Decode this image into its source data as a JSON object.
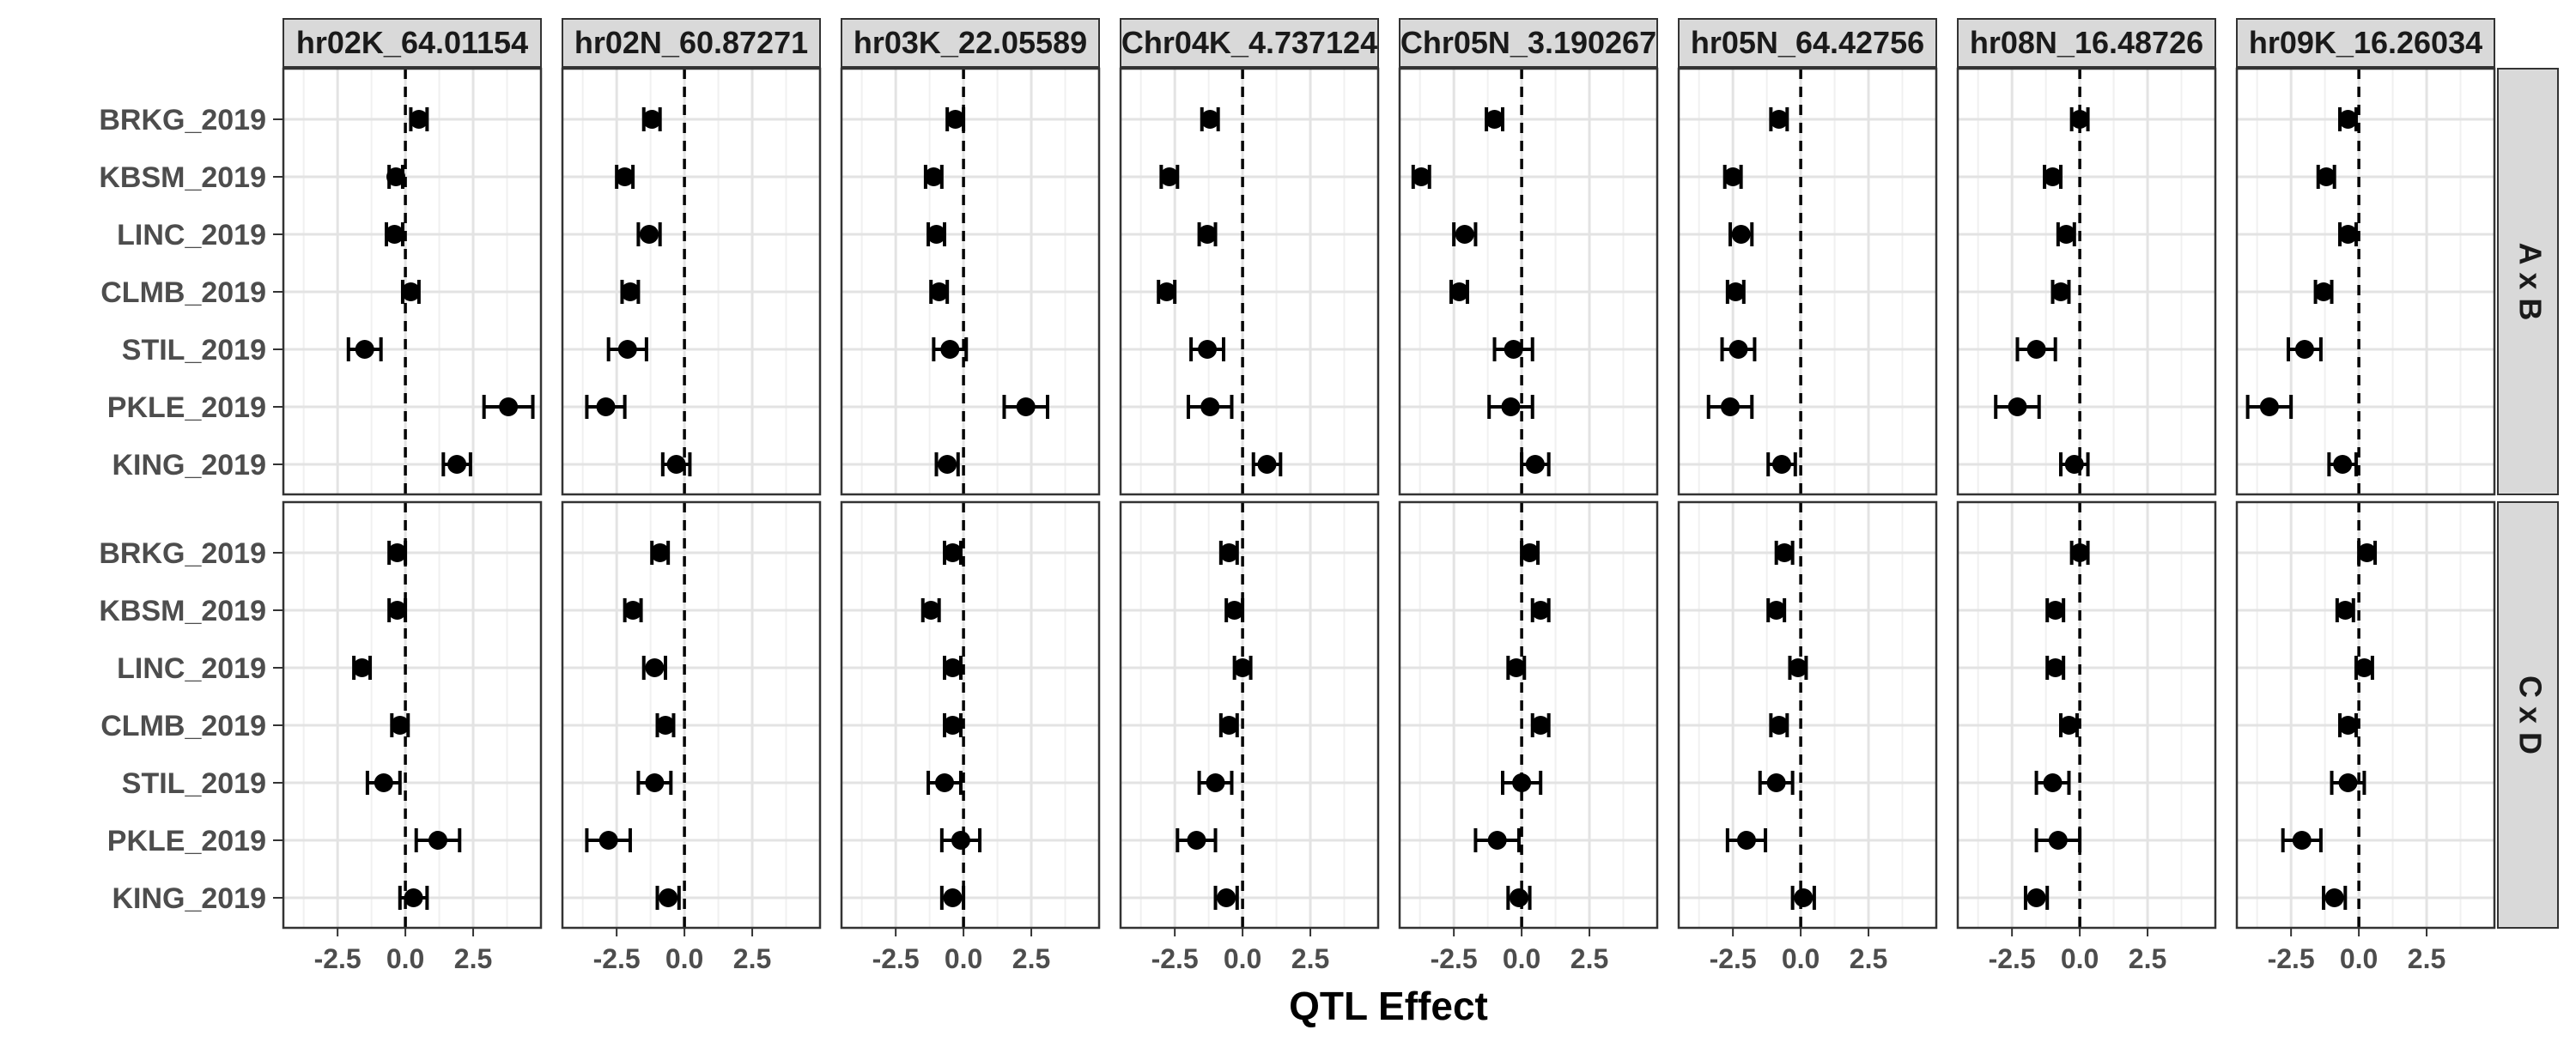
{
  "chart_data": {
    "type": "forest",
    "xlabel": "QTL Effect",
    "ylabel": "",
    "xlim": [
      -4.5,
      5.0
    ],
    "x_ticks": [
      -2.5,
      0.0,
      2.5
    ],
    "x_tick_labels": [
      "-2.5",
      "0.0",
      "2.5"
    ],
    "reference_line": 0,
    "grid": true,
    "environments": [
      "BRKG_2019",
      "KBSM_2019",
      "LINC_2019",
      "CLMB_2019",
      "STIL_2019",
      "PKLE_2019",
      "KING_2019"
    ],
    "columns": [
      "hr02K_64.01154",
      "hr02N_60.87271",
      "hr03K_22.05589",
      "Chr04K_4.737124",
      "Chr05N_3.190267",
      "hr05N_64.42756",
      "hr08N_16.48726",
      "hr09K_16.26034"
    ],
    "rows": [
      "A x B",
      "C x D"
    ],
    "panels": [
      {
        "row": "A x B",
        "column": "hr02K_64.01154",
        "points": [
          {
            "env": "BRKG_2019",
            "estimate": 0.5,
            "lower": 0.2,
            "upper": 0.8
          },
          {
            "env": "KBSM_2019",
            "estimate": -0.35,
            "lower": -0.6,
            "upper": -0.1
          },
          {
            "env": "LINC_2019",
            "estimate": -0.4,
            "lower": -0.7,
            "upper": -0.1
          },
          {
            "env": "CLMB_2019",
            "estimate": 0.2,
            "lower": -0.1,
            "upper": 0.5
          },
          {
            "env": "STIL_2019",
            "estimate": -1.5,
            "lower": -2.1,
            "upper": -0.9
          },
          {
            "env": "PKLE_2019",
            "estimate": 3.8,
            "lower": 2.9,
            "upper": 4.7
          },
          {
            "env": "KING_2019",
            "estimate": 1.9,
            "lower": 1.4,
            "upper": 2.4
          }
        ]
      },
      {
        "row": "A x B",
        "column": "hr02N_60.87271",
        "points": [
          {
            "env": "BRKG_2019",
            "estimate": -1.2,
            "lower": -1.5,
            "upper": -0.9
          },
          {
            "env": "KBSM_2019",
            "estimate": -2.2,
            "lower": -2.5,
            "upper": -1.9
          },
          {
            "env": "LINC_2019",
            "estimate": -1.3,
            "lower": -1.7,
            "upper": -0.9
          },
          {
            "env": "CLMB_2019",
            "estimate": -2.0,
            "lower": -2.3,
            "upper": -1.7
          },
          {
            "env": "STIL_2019",
            "estimate": -2.1,
            "lower": -2.8,
            "upper": -1.4
          },
          {
            "env": "PKLE_2019",
            "estimate": -2.9,
            "lower": -3.6,
            "upper": -2.2
          },
          {
            "env": "KING_2019",
            "estimate": -0.3,
            "lower": -0.8,
            "upper": 0.2
          }
        ]
      },
      {
        "row": "A x B",
        "column": "hr03K_22.05589",
        "points": [
          {
            "env": "BRKG_2019",
            "estimate": -0.3,
            "lower": -0.6,
            "upper": 0.0
          },
          {
            "env": "KBSM_2019",
            "estimate": -1.1,
            "lower": -1.4,
            "upper": -0.8
          },
          {
            "env": "LINC_2019",
            "estimate": -1.0,
            "lower": -1.3,
            "upper": -0.7
          },
          {
            "env": "CLMB_2019",
            "estimate": -0.9,
            "lower": -1.2,
            "upper": -0.6
          },
          {
            "env": "STIL_2019",
            "estimate": -0.5,
            "lower": -1.1,
            "upper": 0.1
          },
          {
            "env": "PKLE_2019",
            "estimate": 2.3,
            "lower": 1.5,
            "upper": 3.1
          },
          {
            "env": "KING_2019",
            "estimate": -0.6,
            "lower": -1.0,
            "upper": -0.2
          }
        ]
      },
      {
        "row": "A x B",
        "column": "Chr04K_4.737124",
        "points": [
          {
            "env": "BRKG_2019",
            "estimate": -1.2,
            "lower": -1.5,
            "upper": -0.9
          },
          {
            "env": "KBSM_2019",
            "estimate": -2.7,
            "lower": -3.0,
            "upper": -2.4
          },
          {
            "env": "LINC_2019",
            "estimate": -1.3,
            "lower": -1.6,
            "upper": -1.0
          },
          {
            "env": "CLMB_2019",
            "estimate": -2.8,
            "lower": -3.1,
            "upper": -2.5
          },
          {
            "env": "STIL_2019",
            "estimate": -1.3,
            "lower": -1.9,
            "upper": -0.7
          },
          {
            "env": "PKLE_2019",
            "estimate": -1.2,
            "lower": -2.0,
            "upper": -0.4
          },
          {
            "env": "KING_2019",
            "estimate": 0.9,
            "lower": 0.4,
            "upper": 1.4
          }
        ]
      },
      {
        "row": "A x B",
        "column": "Chr05N_3.190267",
        "points": [
          {
            "env": "BRKG_2019",
            "estimate": -1.0,
            "lower": -1.3,
            "upper": -0.7
          },
          {
            "env": "KBSM_2019",
            "estimate": -3.7,
            "lower": -4.0,
            "upper": -3.4
          },
          {
            "env": "LINC_2019",
            "estimate": -2.1,
            "lower": -2.5,
            "upper": -1.7
          },
          {
            "env": "CLMB_2019",
            "estimate": -2.3,
            "lower": -2.6,
            "upper": -2.0
          },
          {
            "env": "STIL_2019",
            "estimate": -0.3,
            "lower": -1.0,
            "upper": 0.4
          },
          {
            "env": "PKLE_2019",
            "estimate": -0.4,
            "lower": -1.2,
            "upper": 0.4
          },
          {
            "env": "KING_2019",
            "estimate": 0.5,
            "lower": 0.0,
            "upper": 1.0
          }
        ]
      },
      {
        "row": "A x B",
        "column": "hr05N_64.42756",
        "points": [
          {
            "env": "BRKG_2019",
            "estimate": -0.8,
            "lower": -1.1,
            "upper": -0.5
          },
          {
            "env": "KBSM_2019",
            "estimate": -2.5,
            "lower": -2.8,
            "upper": -2.2
          },
          {
            "env": "LINC_2019",
            "estimate": -2.2,
            "lower": -2.6,
            "upper": -1.8
          },
          {
            "env": "CLMB_2019",
            "estimate": -2.4,
            "lower": -2.7,
            "upper": -2.1
          },
          {
            "env": "STIL_2019",
            "estimate": -2.3,
            "lower": -2.9,
            "upper": -1.7
          },
          {
            "env": "PKLE_2019",
            "estimate": -2.6,
            "lower": -3.4,
            "upper": -1.8
          },
          {
            "env": "KING_2019",
            "estimate": -0.7,
            "lower": -1.2,
            "upper": -0.2
          }
        ]
      },
      {
        "row": "A x B",
        "column": "hr08N_16.48726",
        "points": [
          {
            "env": "BRKG_2019",
            "estimate": 0.0,
            "lower": -0.3,
            "upper": 0.3
          },
          {
            "env": "KBSM_2019",
            "estimate": -1.0,
            "lower": -1.3,
            "upper": -0.7
          },
          {
            "env": "LINC_2019",
            "estimate": -0.5,
            "lower": -0.8,
            "upper": -0.2
          },
          {
            "env": "CLMB_2019",
            "estimate": -0.7,
            "lower": -1.0,
            "upper": -0.4
          },
          {
            "env": "STIL_2019",
            "estimate": -1.6,
            "lower": -2.3,
            "upper": -0.9
          },
          {
            "env": "PKLE_2019",
            "estimate": -2.3,
            "lower": -3.1,
            "upper": -1.5
          },
          {
            "env": "KING_2019",
            "estimate": -0.2,
            "lower": -0.7,
            "upper": 0.3
          }
        ]
      },
      {
        "row": "A x B",
        "column": "hr09K_16.26034",
        "points": [
          {
            "env": "BRKG_2019",
            "estimate": -0.4,
            "lower": -0.7,
            "upper": -0.1
          },
          {
            "env": "KBSM_2019",
            "estimate": -1.2,
            "lower": -1.5,
            "upper": -0.9
          },
          {
            "env": "LINC_2019",
            "estimate": -0.4,
            "lower": -0.7,
            "upper": -0.1
          },
          {
            "env": "CLMB_2019",
            "estimate": -1.3,
            "lower": -1.6,
            "upper": -1.0
          },
          {
            "env": "STIL_2019",
            "estimate": -2.0,
            "lower": -2.6,
            "upper": -1.4
          },
          {
            "env": "PKLE_2019",
            "estimate": -3.3,
            "lower": -4.1,
            "upper": -2.5
          },
          {
            "env": "KING_2019",
            "estimate": -0.6,
            "lower": -1.1,
            "upper": -0.1
          }
        ]
      },
      {
        "row": "C x D",
        "column": "hr02K_64.01154",
        "points": [
          {
            "env": "BRKG_2019",
            "estimate": -0.3,
            "lower": -0.6,
            "upper": 0.0
          },
          {
            "env": "KBSM_2019",
            "estimate": -0.3,
            "lower": -0.6,
            "upper": 0.0
          },
          {
            "env": "LINC_2019",
            "estimate": -1.6,
            "lower": -1.9,
            "upper": -1.3
          },
          {
            "env": "CLMB_2019",
            "estimate": -0.2,
            "lower": -0.5,
            "upper": 0.1
          },
          {
            "env": "STIL_2019",
            "estimate": -0.8,
            "lower": -1.4,
            "upper": -0.2
          },
          {
            "env": "PKLE_2019",
            "estimate": 1.2,
            "lower": 0.4,
            "upper": 2.0
          },
          {
            "env": "KING_2019",
            "estimate": 0.3,
            "lower": -0.2,
            "upper": 0.8
          }
        ]
      },
      {
        "row": "C x D",
        "column": "hr02N_60.87271",
        "points": [
          {
            "env": "BRKG_2019",
            "estimate": -0.9,
            "lower": -1.2,
            "upper": -0.6
          },
          {
            "env": "KBSM_2019",
            "estimate": -1.9,
            "lower": -2.2,
            "upper": -1.6
          },
          {
            "env": "LINC_2019",
            "estimate": -1.1,
            "lower": -1.5,
            "upper": -0.7
          },
          {
            "env": "CLMB_2019",
            "estimate": -0.7,
            "lower": -1.0,
            "upper": -0.4
          },
          {
            "env": "STIL_2019",
            "estimate": -1.1,
            "lower": -1.7,
            "upper": -0.5
          },
          {
            "env": "PKLE_2019",
            "estimate": -2.8,
            "lower": -3.6,
            "upper": -2.0
          },
          {
            "env": "KING_2019",
            "estimate": -0.6,
            "lower": -1.0,
            "upper": -0.2
          }
        ]
      },
      {
        "row": "C x D",
        "column": "hr03K_22.05589",
        "points": [
          {
            "env": "BRKG_2019",
            "estimate": -0.4,
            "lower": -0.7,
            "upper": -0.1
          },
          {
            "env": "KBSM_2019",
            "estimate": -1.2,
            "lower": -1.5,
            "upper": -0.9
          },
          {
            "env": "LINC_2019",
            "estimate": -0.4,
            "lower": -0.7,
            "upper": -0.1
          },
          {
            "env": "CLMB_2019",
            "estimate": -0.4,
            "lower": -0.7,
            "upper": -0.1
          },
          {
            "env": "STIL_2019",
            "estimate": -0.7,
            "lower": -1.3,
            "upper": -0.1
          },
          {
            "env": "PKLE_2019",
            "estimate": -0.1,
            "lower": -0.8,
            "upper": 0.6
          },
          {
            "env": "KING_2019",
            "estimate": -0.4,
            "lower": -0.8,
            "upper": 0.0
          }
        ]
      },
      {
        "row": "C x D",
        "column": "Chr04K_4.737124",
        "points": [
          {
            "env": "BRKG_2019",
            "estimate": -0.5,
            "lower": -0.8,
            "upper": -0.2
          },
          {
            "env": "KBSM_2019",
            "estimate": -0.3,
            "lower": -0.6,
            "upper": 0.0
          },
          {
            "env": "LINC_2019",
            "estimate": 0.0,
            "lower": -0.3,
            "upper": 0.3
          },
          {
            "env": "CLMB_2019",
            "estimate": -0.5,
            "lower": -0.8,
            "upper": -0.2
          },
          {
            "env": "STIL_2019",
            "estimate": -1.0,
            "lower": -1.6,
            "upper": -0.4
          },
          {
            "env": "PKLE_2019",
            "estimate": -1.7,
            "lower": -2.4,
            "upper": -1.0
          },
          {
            "env": "KING_2019",
            "estimate": -0.6,
            "lower": -1.0,
            "upper": -0.2
          }
        ]
      },
      {
        "row": "C x D",
        "column": "Chr05N_3.190267",
        "points": [
          {
            "env": "BRKG_2019",
            "estimate": 0.3,
            "lower": 0.0,
            "upper": 0.6
          },
          {
            "env": "KBSM_2019",
            "estimate": 0.7,
            "lower": 0.4,
            "upper": 1.0
          },
          {
            "env": "LINC_2019",
            "estimate": -0.2,
            "lower": -0.5,
            "upper": 0.1
          },
          {
            "env": "CLMB_2019",
            "estimate": 0.7,
            "lower": 0.4,
            "upper": 1.0
          },
          {
            "env": "STIL_2019",
            "estimate": 0.0,
            "lower": -0.7,
            "upper": 0.7
          },
          {
            "env": "PKLE_2019",
            "estimate": -0.9,
            "lower": -1.7,
            "upper": -0.1
          },
          {
            "env": "KING_2019",
            "estimate": -0.1,
            "lower": -0.5,
            "upper": 0.3
          }
        ]
      },
      {
        "row": "C x D",
        "column": "hr05N_64.42756",
        "points": [
          {
            "env": "BRKG_2019",
            "estimate": -0.6,
            "lower": -0.9,
            "upper": -0.3
          },
          {
            "env": "KBSM_2019",
            "estimate": -0.9,
            "lower": -1.2,
            "upper": -0.6
          },
          {
            "env": "LINC_2019",
            "estimate": -0.1,
            "lower": -0.4,
            "upper": 0.2
          },
          {
            "env": "CLMB_2019",
            "estimate": -0.8,
            "lower": -1.1,
            "upper": -0.5
          },
          {
            "env": "STIL_2019",
            "estimate": -0.9,
            "lower": -1.5,
            "upper": -0.3
          },
          {
            "env": "PKLE_2019",
            "estimate": -2.0,
            "lower": -2.7,
            "upper": -1.3
          },
          {
            "env": "KING_2019",
            "estimate": 0.1,
            "lower": -0.3,
            "upper": 0.5
          }
        ]
      },
      {
        "row": "C x D",
        "column": "hr08N_16.48726",
        "points": [
          {
            "env": "BRKG_2019",
            "estimate": 0.0,
            "lower": -0.3,
            "upper": 0.3
          },
          {
            "env": "KBSM_2019",
            "estimate": -0.9,
            "lower": -1.2,
            "upper": -0.6
          },
          {
            "env": "LINC_2019",
            "estimate": -0.9,
            "lower": -1.2,
            "upper": -0.6
          },
          {
            "env": "CLMB_2019",
            "estimate": -0.4,
            "lower": -0.7,
            "upper": -0.1
          },
          {
            "env": "STIL_2019",
            "estimate": -1.0,
            "lower": -1.6,
            "upper": -0.4
          },
          {
            "env": "PKLE_2019",
            "estimate": -0.8,
            "lower": -1.6,
            "upper": 0.0
          },
          {
            "env": "KING_2019",
            "estimate": -1.6,
            "lower": -2.0,
            "upper": -1.2
          }
        ]
      },
      {
        "row": "C x D",
        "column": "hr09K_16.26034",
        "points": [
          {
            "env": "BRKG_2019",
            "estimate": 0.3,
            "lower": 0.0,
            "upper": 0.6
          },
          {
            "env": "KBSM_2019",
            "estimate": -0.5,
            "lower": -0.8,
            "upper": -0.2
          },
          {
            "env": "LINC_2019",
            "estimate": 0.2,
            "lower": -0.1,
            "upper": 0.5
          },
          {
            "env": "CLMB_2019",
            "estimate": -0.4,
            "lower": -0.7,
            "upper": -0.1
          },
          {
            "env": "STIL_2019",
            "estimate": -0.4,
            "lower": -1.0,
            "upper": 0.2
          },
          {
            "env": "PKLE_2019",
            "estimate": -2.1,
            "lower": -2.8,
            "upper": -1.4
          },
          {
            "env": "KING_2019",
            "estimate": -0.9,
            "lower": -1.3,
            "upper": -0.5
          }
        ]
      }
    ]
  }
}
